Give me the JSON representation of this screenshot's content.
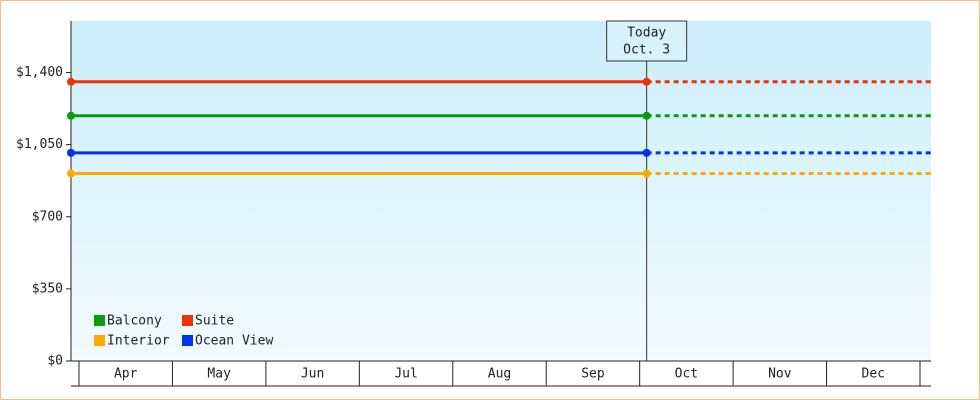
{
  "chart_data": {
    "type": "line",
    "categories": [
      "Apr",
      "May",
      "Jun",
      "Jul",
      "Aug",
      "Sep",
      "Oct",
      "Nov",
      "Dec"
    ],
    "today": {
      "label": "Today",
      "date": "Oct. 3"
    },
    "series": [
      {
        "name": "Balcony",
        "color": "#0a9a0a",
        "value": 1190
      },
      {
        "name": "Suite",
        "color": "#ee3300",
        "value": 1355
      },
      {
        "name": "Interior",
        "color": "#ffaa00",
        "value": 910
      },
      {
        "name": "Ocean View",
        "color": "#0033ee",
        "value": 1010
      }
    ],
    "ylim": [
      0,
      1650
    ],
    "yticks": [
      {
        "value": 0,
        "label": "$0"
      },
      {
        "value": 350,
        "label": "$350"
      },
      {
        "value": 700,
        "label": "$700"
      },
      {
        "value": 1050,
        "label": "$1,050"
      },
      {
        "value": 1400,
        "label": "$1,400"
      }
    ]
  }
}
